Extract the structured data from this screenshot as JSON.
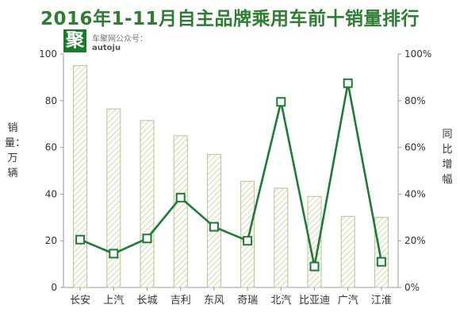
{
  "header": {
    "title": "2016年1-11月自主品牌乘用车前十销量排行",
    "logo_char": "聚",
    "logo_line1": "车聚网公众号：",
    "logo_line2": "autoju"
  },
  "colors": {
    "title": "#2e7d32",
    "bar_stroke": "#bdbf92",
    "bar_hatch": "#d8d9b4",
    "line": "#1e7b34",
    "axis": "#999999"
  },
  "chart_data": {
    "type": "bar",
    "title": "2016年1-11月自主品牌乘用车前十销量排行",
    "xlabel": "",
    "ylabel": "销量：万辆",
    "y2label": "同比增幅",
    "categories": [
      "长安",
      "上汽",
      "长城",
      "吉利",
      "东风",
      "奇瑞",
      "北汽",
      "比亚迪",
      "广汽",
      "江淮"
    ],
    "ylim": [
      0,
      100
    ],
    "y2lim": [
      0,
      100
    ],
    "yticks": [
      "0",
      "20",
      "40",
      "60",
      "80",
      "100"
    ],
    "y2ticks": [
      "0%",
      "20%",
      "40%",
      "60%",
      "80%",
      "100%"
    ],
    "grid": false,
    "series": [
      {
        "type": "bar",
        "axis": "left",
        "values": [
          95,
          76.5,
          71.5,
          65,
          57,
          45.5,
          42.5,
          39,
          30.5,
          30
        ]
      },
      {
        "type": "line",
        "axis": "right",
        "values": [
          20.5,
          14.5,
          21,
          38.5,
          26,
          20,
          79.5,
          9,
          87.5,
          11
        ]
      }
    ]
  }
}
